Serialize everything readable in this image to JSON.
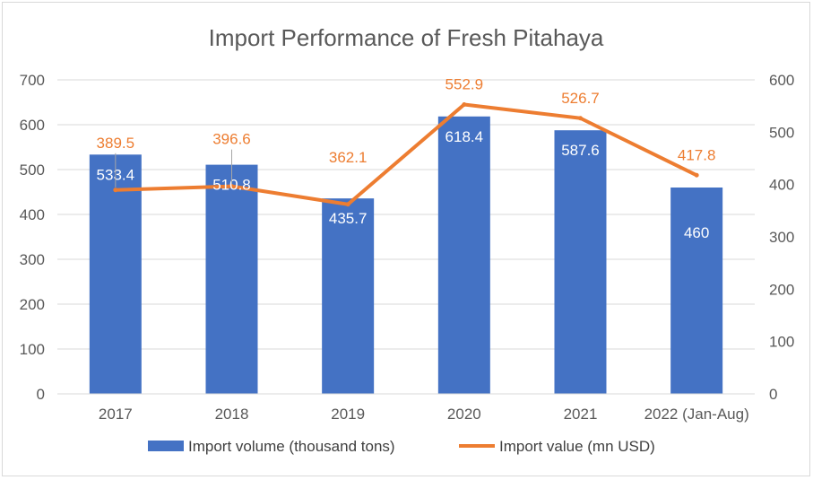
{
  "chart_data": {
    "type": "bar",
    "title": "Import Performance of Fresh Pitahaya",
    "categories": [
      "2017",
      "2018",
      "2019",
      "2020",
      "2021",
      "2022 (Jan-Aug)"
    ],
    "series": [
      {
        "name": "Import volume (thousand tons)",
        "type": "bar",
        "axis": "left",
        "color": "#4472c4",
        "values": [
          533.4,
          510.8,
          435.7,
          618.4,
          587.6,
          460
        ],
        "labels": [
          "533.4",
          "510.8",
          "435.7",
          "618.4",
          "587.6",
          "460"
        ]
      },
      {
        "name": "Import value (mn USD)",
        "type": "line",
        "axis": "right",
        "color": "#ed7d31",
        "values": [
          389.5,
          396.6,
          362.1,
          552.9,
          526.7,
          417.8
        ],
        "labels": [
          "389.5",
          "396.6",
          "362.1",
          "552.9",
          "526.7",
          "417.8"
        ]
      }
    ],
    "y_left": {
      "min": 0,
      "max": 700,
      "ticks": [
        "0",
        "100",
        "200",
        "300",
        "400",
        "500",
        "600",
        "700"
      ]
    },
    "y_right": {
      "min": 0,
      "max": 600,
      "ticks": [
        "0",
        "100",
        "200",
        "300",
        "400",
        "500",
        "600"
      ]
    },
    "grid": true,
    "legend_position": "bottom"
  }
}
